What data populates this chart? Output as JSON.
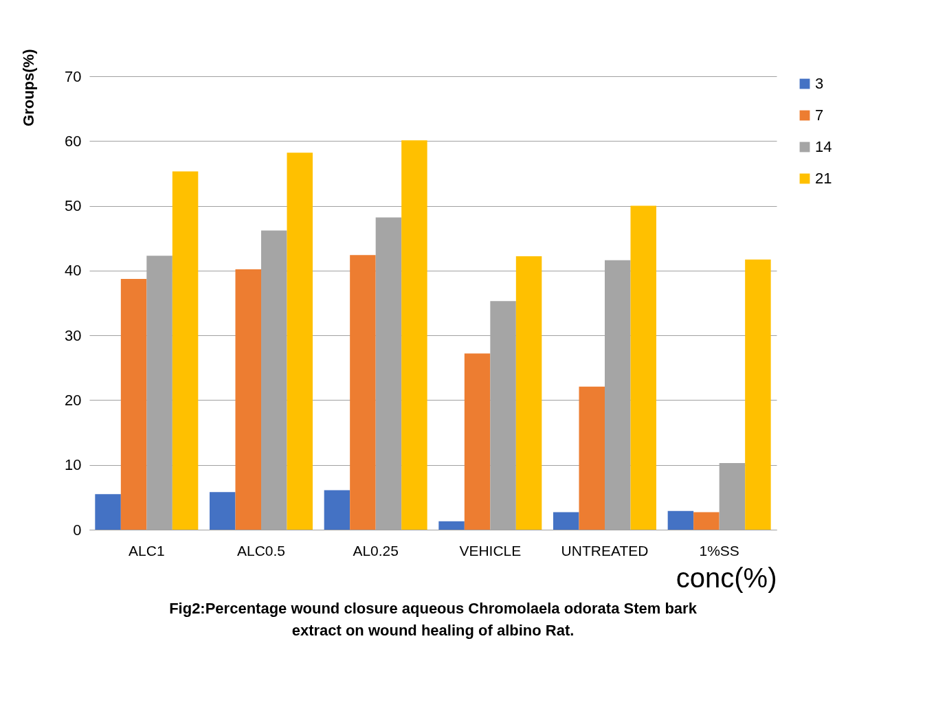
{
  "chart_data": {
    "type": "bar",
    "title": "Fig2:Percentage wound closure aqueous Chromolaela odorata Stem bark extract on wound healing of albino Rat.",
    "xlabel": "conc(%)",
    "ylabel": "Groups(%)",
    "categories": [
      "ALC1",
      "ALC0.5",
      "AL0.25",
      "VEHICLE",
      "UNTREATED",
      "1%SS"
    ],
    "series": [
      {
        "name": "3",
        "color": "#4472c4",
        "values": [
          5.5,
          5.8,
          6.1,
          1.3,
          2.7,
          2.9
        ]
      },
      {
        "name": "7",
        "color": "#ed7d31",
        "values": [
          38.7,
          40.2,
          42.4,
          27.2,
          22.1,
          2.7
        ]
      },
      {
        "name": "14",
        "color": "#a5a5a5",
        "values": [
          42.3,
          46.2,
          48.2,
          35.3,
          41.6,
          10.3
        ]
      },
      {
        "name": "21",
        "color": "#ffc000",
        "values": [
          55.3,
          58.2,
          60.1,
          42.2,
          50.0,
          41.7
        ]
      }
    ],
    "ylim": [
      0,
      70
    ],
    "yticks": [
      0,
      10,
      20,
      30,
      40,
      50,
      60,
      70
    ],
    "grid": "y",
    "legend": "right"
  }
}
